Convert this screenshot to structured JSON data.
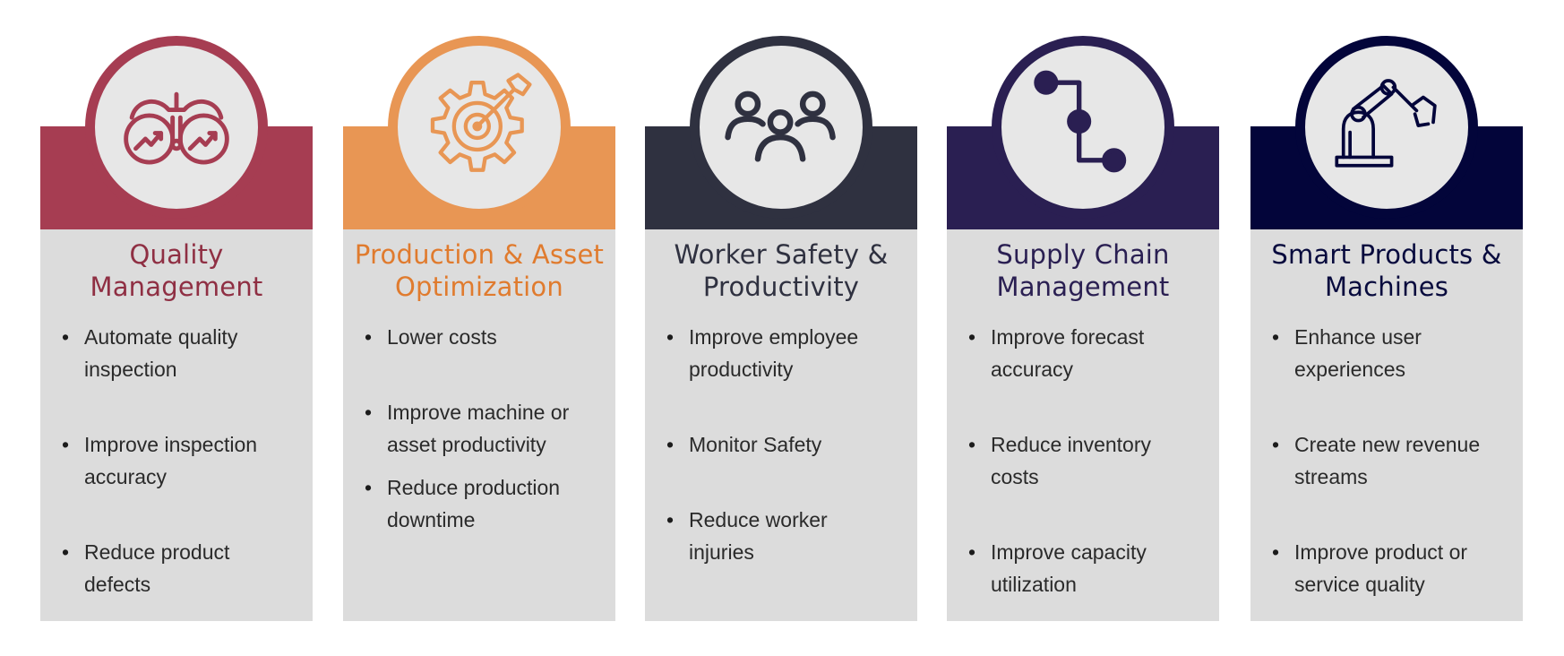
{
  "columns": [
    {
      "title_line1": "Quality",
      "title_line2": "Management",
      "color": "#a63d52",
      "title_color": "#8f2f43",
      "icon": "binoculars-growth-icon",
      "bullets": [
        {
          "line1": "Automate quality",
          "line2": "inspection"
        },
        {
          "line1": "Improve inspection",
          "line2": "accuracy"
        },
        {
          "line1": "Reduce product",
          "line2": "defects"
        }
      ]
    },
    {
      "title_line1": "Production & Asset",
      "title_line2": "Optimization",
      "color": "#e89654",
      "title_color": "#e07b2e",
      "icon": "gear-target-icon",
      "bullets": [
        {
          "line1": "Lower costs",
          "line2": ""
        },
        {
          "line1": "Improve machine or",
          "line2": "asset productivity"
        },
        {
          "line1": "Reduce production",
          "line2": "downtime"
        }
      ]
    },
    {
      "title_line1": "Worker Safety &",
      "title_line2": "Productivity",
      "color": "#2f3140",
      "title_color": "#2f3140",
      "icon": "team-people-icon",
      "bullets": [
        {
          "line1": "Improve employee",
          "line2": "productivity"
        },
        {
          "line1": "Monitor Safety",
          "line2": ""
        },
        {
          "line1": "Reduce worker",
          "line2": "injuries"
        }
      ]
    },
    {
      "title_line1": "Supply Chain",
      "title_line2": "Management",
      "color": "#2a1f52",
      "title_color": "#2a1f52",
      "icon": "flow-path-icon",
      "bullets": [
        {
          "line1": "Improve forecast",
          "line2": "accuracy"
        },
        {
          "line1": "Reduce inventory",
          "line2": "costs"
        },
        {
          "line1": "Improve capacity",
          "line2": "utilization"
        }
      ]
    },
    {
      "title_line1": "Smart Products &",
      "title_line2": "Machines",
      "color": "#03053a",
      "title_color": "#070a3d",
      "icon": "robotic-arm-icon",
      "bullets": [
        {
          "line1": "Enhance user",
          "line2": "experiences"
        },
        {
          "line1": "Create new revenue",
          "line2": "streams"
        },
        {
          "line1": "Improve product or",
          "line2": "service quality"
        }
      ]
    }
  ]
}
